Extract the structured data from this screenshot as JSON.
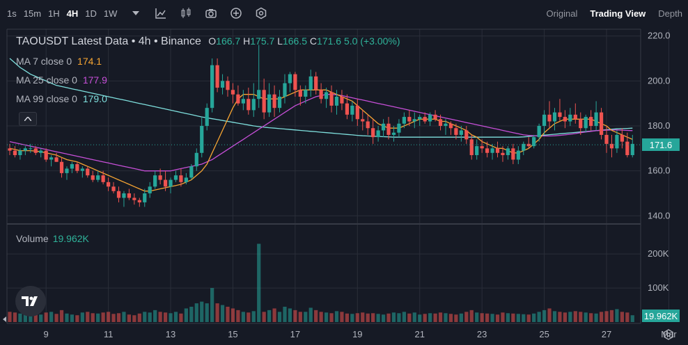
{
  "toolbar": {
    "timeframes": [
      "1s",
      "15m",
      "1H",
      "4H",
      "1D",
      "1W"
    ],
    "active_timeframe": "4H",
    "icons": [
      "chevron-down-icon",
      "indicator-icon",
      "candle-type-icon",
      "camera-icon",
      "plus-circle-icon",
      "settings-icon"
    ]
  },
  "view_tabs": {
    "original": "Original",
    "trading_view": "Trading View",
    "depth": "Depth",
    "active": "Trading View"
  },
  "legend": {
    "symbol": "TAOUSDT Latest Data • 4h • Binance",
    "open_label": "O",
    "open": "166.7",
    "high_label": "H",
    "high": "175.7",
    "low_label": "L",
    "low": "166.5",
    "close_label": "C",
    "close": "171.6",
    "change": "5.0 (+3.00%)"
  },
  "ma": [
    {
      "label": "MA 7 close 0",
      "value": "174.1",
      "color": "#f7a532"
    },
    {
      "label": "MA 25 close 0",
      "value": "177.9",
      "color": "#c74fd8"
    },
    {
      "label": "MA 99 close 0",
      "value": "179.0",
      "color": "#7fe0de"
    }
  ],
  "volume_legend": {
    "label": "Volume",
    "value": "19.962K"
  },
  "price_tag": "171.6",
  "volume_tag": "19.962K",
  "colors": {
    "up": "#26a69a",
    "down": "#ef5350",
    "background": "#161a25",
    "grid": "#2a2e39"
  },
  "chart_data": {
    "type": "candlestick",
    "title": "TAOUSDT Latest Data • 4h • Binance",
    "price_axis": {
      "ticks": [
        "220.0",
        "200.0",
        "180.0",
        "160.0",
        "140.0"
      ],
      "range": [
        137,
        223
      ]
    },
    "volume_axis": {
      "ticks": [
        "200K",
        "100K"
      ],
      "range": [
        0,
        280000
      ]
    },
    "x_ticks": [
      "9",
      "11",
      "13",
      "15",
      "17",
      "19",
      "21",
      "23",
      "25",
      "27",
      "Mar"
    ],
    "x_tick_index": [
      7,
      19,
      31,
      43,
      55,
      67,
      79,
      91,
      103,
      115,
      127
    ],
    "candles": [
      [
        170,
        172,
        167,
        169
      ],
      [
        169,
        171,
        166,
        167
      ],
      [
        167,
        170,
        165,
        169
      ],
      [
        169,
        171,
        167,
        170
      ],
      [
        170,
        172,
        168,
        170
      ],
      [
        170,
        171,
        167,
        168
      ],
      [
        168,
        170,
        166,
        169
      ],
      [
        169,
        170,
        164,
        165
      ],
      [
        165,
        167,
        162,
        166
      ],
      [
        166,
        168,
        164,
        164
      ],
      [
        164,
        166,
        157,
        159
      ],
      [
        159,
        162,
        156,
        161
      ],
      [
        161,
        164,
        159,
        163
      ],
      [
        163,
        164,
        159,
        160
      ],
      [
        160,
        162,
        157,
        161
      ],
      [
        161,
        162,
        157,
        158
      ],
      [
        158,
        160,
        155,
        156
      ],
      [
        156,
        160,
        155,
        158
      ],
      [
        158,
        160,
        154,
        155
      ],
      [
        155,
        157,
        151,
        153
      ],
      [
        153,
        155,
        150,
        151
      ],
      [
        151,
        153,
        146,
        148
      ],
      [
        148,
        151,
        144,
        150
      ],
      [
        150,
        152,
        147,
        148
      ],
      [
        148,
        150,
        145,
        147
      ],
      [
        147,
        148,
        144,
        146
      ],
      [
        146,
        152,
        144,
        150
      ],
      [
        150,
        155,
        148,
        153
      ],
      [
        153,
        160,
        152,
        158
      ],
      [
        158,
        161,
        154,
        156
      ],
      [
        156,
        160,
        151,
        153
      ],
      [
        153,
        157,
        150,
        156
      ],
      [
        156,
        160,
        155,
        158
      ],
      [
        158,
        161,
        153,
        155
      ],
      [
        155,
        159,
        154,
        157
      ],
      [
        157,
        163,
        156,
        162
      ],
      [
        162,
        170,
        160,
        168
      ],
      [
        168,
        184,
        166,
        180
      ],
      [
        180,
        190,
        178,
        188
      ],
      [
        188,
        210,
        186,
        207
      ],
      [
        207,
        210,
        195,
        197
      ],
      [
        197,
        203,
        194,
        200
      ],
      [
        200,
        202,
        193,
        196
      ],
      [
        196,
        199,
        190,
        194
      ],
      [
        194,
        198,
        189,
        190
      ],
      [
        190,
        196,
        187,
        192
      ],
      [
        192,
        197,
        185,
        187
      ],
      [
        187,
        199,
        184,
        192
      ],
      [
        192,
        216,
        188,
        196
      ],
      [
        196,
        201,
        183,
        186
      ],
      [
        186,
        199,
        184,
        194
      ],
      [
        194,
        198,
        184,
        188
      ],
      [
        188,
        196,
        186,
        193
      ],
      [
        193,
        203,
        190,
        199
      ],
      [
        199,
        204,
        195,
        203
      ],
      [
        203,
        204,
        193,
        196
      ],
      [
        196,
        198,
        189,
        193
      ],
      [
        193,
        198,
        190,
        196
      ],
      [
        196,
        205,
        193,
        202
      ],
      [
        202,
        204,
        194,
        196
      ],
      [
        196,
        199,
        190,
        192
      ],
      [
        192,
        197,
        188,
        195
      ],
      [
        195,
        198,
        186,
        189
      ],
      [
        189,
        196,
        185,
        193
      ],
      [
        193,
        196,
        187,
        190
      ],
      [
        190,
        194,
        183,
        185
      ],
      [
        185,
        191,
        182,
        189
      ],
      [
        189,
        192,
        180,
        183
      ],
      [
        183,
        187,
        178,
        182
      ],
      [
        182,
        185,
        176,
        179
      ],
      [
        179,
        183,
        172,
        175
      ],
      [
        175,
        180,
        173,
        178
      ],
      [
        178,
        183,
        175,
        181
      ],
      [
        181,
        184,
        174,
        176
      ],
      [
        176,
        180,
        173,
        177
      ],
      [
        177,
        183,
        175,
        181
      ],
      [
        181,
        186,
        179,
        184
      ],
      [
        184,
        187,
        180,
        182
      ],
      [
        182,
        186,
        179,
        183
      ],
      [
        183,
        185,
        180,
        184
      ],
      [
        184,
        186,
        181,
        182
      ],
      [
        182,
        186,
        180,
        185
      ],
      [
        185,
        187,
        182,
        183
      ],
      [
        183,
        185,
        178,
        180
      ],
      [
        180,
        183,
        176,
        181
      ],
      [
        181,
        182,
        176,
        179
      ],
      [
        179,
        181,
        174,
        176
      ],
      [
        176,
        180,
        173,
        178
      ],
      [
        178,
        180,
        172,
        174
      ],
      [
        174,
        176,
        165,
        167
      ],
      [
        167,
        174,
        165,
        171
      ],
      [
        171,
        174,
        168,
        170
      ],
      [
        170,
        173,
        166,
        168
      ],
      [
        168,
        172,
        165,
        170
      ],
      [
        170,
        173,
        166,
        168
      ],
      [
        168,
        171,
        164,
        167
      ],
      [
        167,
        171,
        165,
        170
      ],
      [
        170,
        172,
        163,
        165
      ],
      [
        165,
        171,
        163,
        169
      ],
      [
        169,
        173,
        167,
        172
      ],
      [
        172,
        175,
        170,
        171
      ],
      [
        171,
        176,
        170,
        175
      ],
      [
        175,
        181,
        173,
        180
      ],
      [
        180,
        187,
        176,
        185
      ],
      [
        185,
        191,
        179,
        182
      ],
      [
        182,
        188,
        178,
        186
      ],
      [
        186,
        192,
        182,
        184
      ],
      [
        184,
        187,
        179,
        182
      ],
      [
        182,
        188,
        180,
        185
      ],
      [
        185,
        190,
        181,
        183
      ],
      [
        183,
        186,
        176,
        179
      ],
      [
        179,
        185,
        177,
        184
      ],
      [
        184,
        187,
        178,
        180
      ],
      [
        180,
        191,
        178,
        186
      ],
      [
        186,
        188,
        174,
        176
      ],
      [
        176,
        180,
        168,
        172
      ],
      [
        172,
        176,
        166,
        170
      ],
      [
        170,
        178,
        168,
        176
      ],
      [
        176,
        179,
        170,
        173
      ],
      [
        173,
        177,
        166,
        167
      ],
      [
        167,
        176,
        166,
        172
      ]
    ],
    "volumes": [
      30,
      28,
      25,
      24,
      26,
      30,
      22,
      28,
      30,
      24,
      35,
      25,
      22,
      20,
      28,
      30,
      26,
      25,
      28,
      30,
      24,
      26,
      30,
      22,
      20,
      25,
      30,
      28,
      35,
      30,
      28,
      26,
      30,
      25,
      40,
      45,
      55,
      60,
      55,
      100,
      55,
      50,
      45,
      40,
      35,
      30,
      28,
      32,
      230,
      30,
      35,
      40,
      30,
      45,
      40,
      35,
      30,
      30,
      42,
      35,
      30,
      28,
      26,
      32,
      30,
      25,
      24,
      26,
      28,
      25,
      26,
      24,
      22,
      25,
      28,
      26,
      30,
      25,
      28,
      22,
      24,
      26,
      25,
      28,
      26,
      24,
      22,
      25,
      30,
      35,
      28,
      26,
      25,
      24,
      22,
      28,
      26,
      25,
      24,
      23,
      22,
      25,
      30,
      35,
      40,
      32,
      30,
      28,
      30,
      32,
      30,
      28,
      26,
      25,
      30,
      32,
      35,
      38,
      30,
      28,
      20
    ],
    "ma7": [
      170,
      169.5,
      169,
      169,
      169,
      168.8,
      168.5,
      168,
      167.5,
      167,
      166,
      165,
      164.5,
      164,
      163,
      162,
      161,
      160,
      159,
      158,
      157,
      156,
      155,
      154,
      153,
      152,
      151,
      151,
      151.5,
      152,
      152.5,
      153,
      153.5,
      154,
      155,
      156,
      158,
      160,
      163,
      168,
      173,
      178,
      183,
      188,
      192,
      194,
      194,
      194,
      193,
      192,
      192,
      192,
      192,
      193,
      194,
      195,
      196,
      196,
      196,
      196,
      196,
      196,
      195,
      194,
      193,
      192,
      191,
      189,
      187,
      185,
      183,
      181,
      180,
      179,
      179,
      179,
      180,
      181,
      182,
      183,
      183,
      183,
      183,
      182,
      182,
      181,
      180,
      179,
      178,
      176,
      175,
      173,
      172,
      171,
      170,
      170,
      169,
      168,
      168,
      169,
      170,
      172,
      174,
      177,
      179,
      181,
      182,
      183,
      183,
      183,
      183,
      183,
      183,
      182,
      181,
      180,
      178,
      177,
      176,
      175,
      174
    ],
    "ma25": [
      173,
      172.5,
      172,
      171.5,
      171,
      170.5,
      170,
      169.5,
      169,
      168.5,
      168,
      167.5,
      167,
      166.5,
      166,
      165.5,
      165,
      164.5,
      164,
      163.5,
      163,
      162.5,
      162,
      161.5,
      161,
      160.5,
      160,
      160,
      160,
      160,
      160,
      160,
      160.5,
      161,
      161.5,
      162,
      162.5,
      163,
      164,
      165,
      166.5,
      168,
      169.5,
      171,
      172.5,
      174,
      175.5,
      177,
      178.5,
      180,
      181.5,
      183,
      184.5,
      186,
      187.5,
      189,
      190,
      191,
      192,
      193,
      193.5,
      194,
      194,
      193.8,
      193.5,
      193,
      192.5,
      192,
      191.5,
      191,
      190.5,
      190,
      189.5,
      189,
      188.5,
      188,
      187.5,
      187,
      186.5,
      186,
      185.5,
      185,
      184.5,
      184,
      183.5,
      183,
      182.5,
      182,
      181.5,
      181,
      180.5,
      180,
      179.5,
      179,
      178.5,
      178,
      177.5,
      177,
      176.5,
      176,
      175.8,
      175.6,
      175.5,
      175.5,
      175.5,
      175.6,
      175.8,
      176,
      176.3,
      176.6,
      177,
      177.3,
      177.6,
      177.9,
      178,
      178.1,
      178.2,
      178.2,
      178.1,
      178,
      177.9
    ],
    "ma99": [
      210,
      208,
      206,
      204.5,
      203,
      202,
      201,
      200,
      199,
      198,
      197.5,
      197,
      196.5,
      196,
      195.5,
      195,
      194.5,
      194,
      193.5,
      193,
      192.5,
      192,
      191.5,
      191,
      190.5,
      190,
      189.5,
      189,
      188.5,
      188,
      187.5,
      187,
      186.5,
      186,
      185.5,
      185,
      184.5,
      184,
      183.6,
      183.2,
      182.8,
      182.4,
      182,
      181.6,
      181.2,
      180.8,
      180.4,
      180,
      179.7,
      179.4,
      179.2,
      179,
      178.8,
      178.6,
      178.4,
      178.2,
      178,
      177.8,
      177.6,
      177.4,
      177.2,
      177,
      176.8,
      176.6,
      176.4,
      176.2,
      176,
      175.8,
      175.6,
      175.5,
      175.4,
      175.3,
      175.2,
      175.1,
      175,
      175,
      175,
      175,
      175,
      175,
      175,
      175,
      175,
      175,
      175,
      175,
      175,
      175,
      175,
      175,
      175,
      175,
      175,
      175,
      175,
      175,
      175,
      175,
      175,
      175.1,
      175.3,
      175.5,
      175.7,
      175.9,
      176.1,
      176.3,
      176.5,
      176.7,
      176.9,
      177.1,
      177.3,
      177.5,
      177.7,
      177.9,
      178.1,
      178.3,
      178.5,
      178.7,
      178.8,
      178.9,
      179
    ]
  }
}
